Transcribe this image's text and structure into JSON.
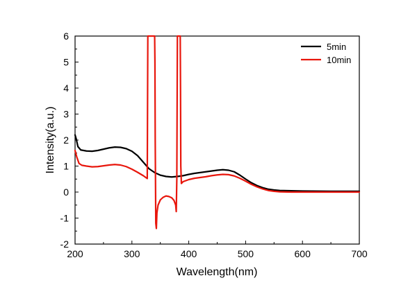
{
  "chart_data": {
    "type": "line",
    "xlabel": "Wavelength(nm)",
    "ylabel": "Intensity(a.u.)",
    "xlim": [
      200,
      700
    ],
    "ylim": [
      -2,
      6
    ],
    "xticks": [
      200,
      300,
      400,
      500,
      600,
      700
    ],
    "yticks": [
      -2,
      -1,
      0,
      1,
      2,
      3,
      4,
      5,
      6
    ],
    "grid": false,
    "legend_position": "top-right",
    "series": [
      {
        "name": "5min",
        "color": "#000000",
        "points": [
          [
            200,
            2.2
          ],
          [
            202,
            2.05
          ],
          [
            205,
            1.75
          ],
          [
            210,
            1.62
          ],
          [
            220,
            1.58
          ],
          [
            230,
            1.57
          ],
          [
            240,
            1.6
          ],
          [
            250,
            1.65
          ],
          [
            260,
            1.7
          ],
          [
            270,
            1.73
          ],
          [
            280,
            1.72
          ],
          [
            290,
            1.67
          ],
          [
            300,
            1.57
          ],
          [
            310,
            1.4
          ],
          [
            320,
            1.15
          ],
          [
            330,
            0.9
          ],
          [
            340,
            0.75
          ],
          [
            350,
            0.65
          ],
          [
            360,
            0.6
          ],
          [
            370,
            0.58
          ],
          [
            380,
            0.6
          ],
          [
            390,
            0.63
          ],
          [
            400,
            0.68
          ],
          [
            410,
            0.72
          ],
          [
            420,
            0.75
          ],
          [
            430,
            0.78
          ],
          [
            440,
            0.81
          ],
          [
            450,
            0.84
          ],
          [
            460,
            0.86
          ],
          [
            470,
            0.84
          ],
          [
            480,
            0.78
          ],
          [
            490,
            0.65
          ],
          [
            500,
            0.5
          ],
          [
            510,
            0.36
          ],
          [
            520,
            0.25
          ],
          [
            530,
            0.17
          ],
          [
            540,
            0.11
          ],
          [
            550,
            0.08
          ],
          [
            560,
            0.06
          ],
          [
            580,
            0.05
          ],
          [
            600,
            0.04
          ],
          [
            650,
            0.03
          ],
          [
            700,
            0.03
          ]
        ]
      },
      {
        "name": "10min",
        "color": "#e8160c",
        "points": [
          [
            200,
            1.6
          ],
          [
            203,
            1.35
          ],
          [
            207,
            1.1
          ],
          [
            212,
            1.03
          ],
          [
            220,
            1.0
          ],
          [
            230,
            0.97
          ],
          [
            240,
            0.98
          ],
          [
            250,
            1.01
          ],
          [
            260,
            1.04
          ],
          [
            270,
            1.06
          ],
          [
            280,
            1.04
          ],
          [
            290,
            0.98
          ],
          [
            300,
            0.88
          ],
          [
            310,
            0.76
          ],
          [
            320,
            0.63
          ],
          [
            327,
            0.52
          ],
          [
            328,
            6.0
          ],
          [
            340,
            6.0
          ],
          [
            340.5,
            5.0
          ],
          [
            341,
            2.0
          ],
          [
            342,
            -1.2
          ],
          [
            343,
            -1.4
          ],
          [
            344,
            -0.8
          ],
          [
            346,
            -0.5
          ],
          [
            350,
            -0.3
          ],
          [
            355,
            -0.2
          ],
          [
            360,
            -0.15
          ],
          [
            365,
            -0.17
          ],
          [
            370,
            -0.22
          ],
          [
            374,
            -0.32
          ],
          [
            377,
            -0.5
          ],
          [
            378,
            -0.75
          ],
          [
            379,
            0.5
          ],
          [
            380,
            6.0
          ],
          [
            385,
            6.0
          ],
          [
            385.5,
            4.0
          ],
          [
            386,
            1.0
          ],
          [
            387,
            0.33
          ],
          [
            390,
            0.4
          ],
          [
            400,
            0.48
          ],
          [
            410,
            0.53
          ],
          [
            420,
            0.56
          ],
          [
            430,
            0.59
          ],
          [
            440,
            0.63
          ],
          [
            450,
            0.66
          ],
          [
            460,
            0.68
          ],
          [
            470,
            0.67
          ],
          [
            480,
            0.62
          ],
          [
            490,
            0.53
          ],
          [
            500,
            0.42
          ],
          [
            510,
            0.3
          ],
          [
            520,
            0.2
          ],
          [
            530,
            0.12
          ],
          [
            540,
            0.06
          ],
          [
            550,
            0.03
          ],
          [
            560,
            0.01
          ],
          [
            580,
            0.0
          ],
          [
            600,
            0.0
          ],
          [
            650,
            0.0
          ],
          [
            700,
            0.0
          ]
        ]
      }
    ]
  }
}
